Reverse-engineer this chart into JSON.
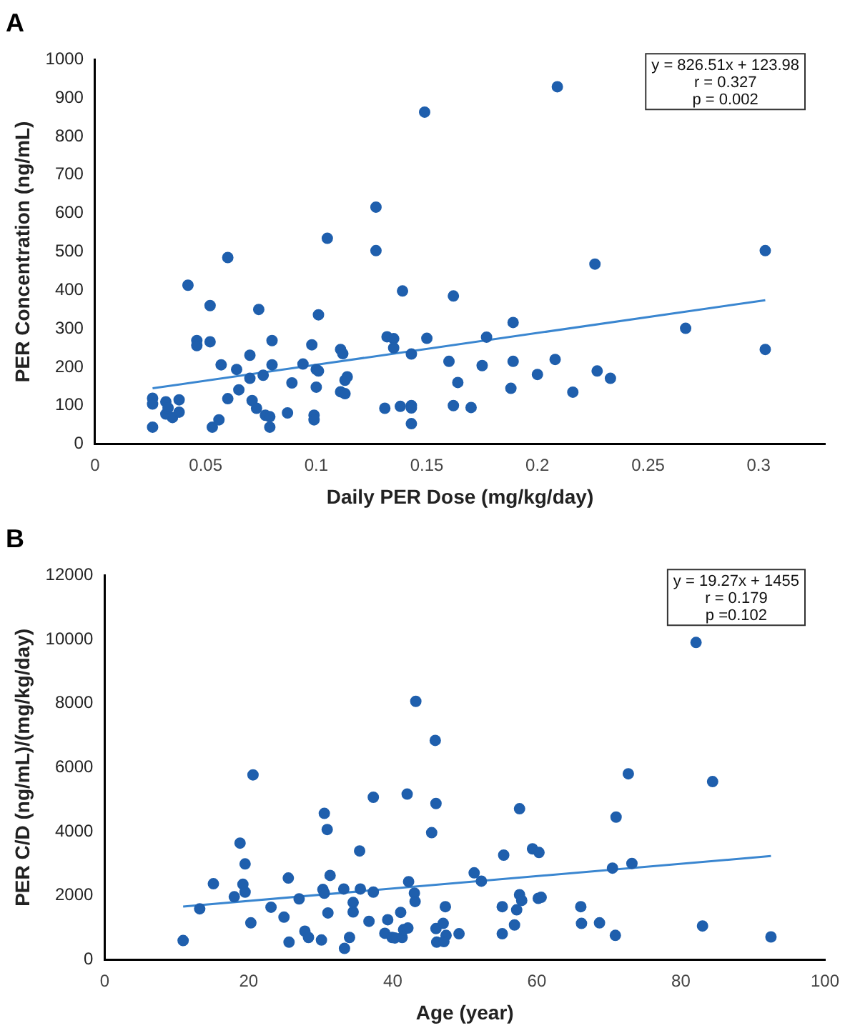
{
  "chart_data": [
    {
      "type": "scatter",
      "title": "A",
      "xlabel": "Daily PER Dose (mg/kg/day)",
      "ylabel": "PER Concentration (ng/mL)",
      "xlim": [
        0,
        0.33
      ],
      "xticks": [
        0,
        0.05,
        0.1,
        0.15,
        0.2,
        0.25,
        0.3
      ],
      "ylim": [
        0,
        1000
      ],
      "yticks": [
        0,
        100,
        200,
        300,
        400,
        500,
        600,
        700,
        800,
        900,
        1000
      ],
      "grid": false,
      "legend": false,
      "annotations": [
        "y = 826.51x + 123.98",
        "r = 0.327",
        "p = 0.002"
      ],
      "series": [
        {
          "type": "scatter",
          "marker": "circle",
          "color": "#1f5fad",
          "x": [
            0.026,
            0.026,
            0.026,
            0.032,
            0.032,
            0.033,
            0.035,
            0.038,
            0.038,
            0.042,
            0.046,
            0.046,
            0.052,
            0.052,
            0.053,
            0.056,
            0.057,
            0.06,
            0.06,
            0.064,
            0.065,
            0.07,
            0.07,
            0.071,
            0.073,
            0.074,
            0.076,
            0.077,
            0.079,
            0.079,
            0.08,
            0.08,
            0.087,
            0.089,
            0.094,
            0.098,
            0.099,
            0.099,
            0.1,
            0.1,
            0.101,
            0.101,
            0.105,
            0.111,
            0.111,
            0.112,
            0.113,
            0.113,
            0.114,
            0.127,
            0.127,
            0.131,
            0.132,
            0.135,
            0.135,
            0.138,
            0.139,
            0.143,
            0.143,
            0.143,
            0.143,
            0.149,
            0.15,
            0.162,
            0.16,
            0.164,
            0.162,
            0.17,
            0.177,
            0.175,
            0.189,
            0.189,
            0.188,
            0.2,
            0.208,
            0.209,
            0.216,
            0.226,
            0.227,
            0.233,
            0.267,
            0.303,
            0.303
          ],
          "values": [
            119,
            104,
            44,
            110,
            78,
            94,
            69,
            115,
            83,
            413,
            269,
            256,
            266,
            360,
            44,
            63,
            206,
            118,
            485,
            194,
            141,
            171,
            231,
            113,
            93,
            350,
            179,
            75,
            71,
            44,
            269,
            206,
            81,
            159,
            208,
            258,
            75,
            63,
            194,
            148,
            336,
            190,
            535,
            246,
            136,
            235,
            131,
            166,
            175,
            616,
            503,
            93,
            279,
            274,
            250,
            98,
            398,
            100,
            234,
            94,
            53,
            863,
            275,
            385,
            215,
            160,
            100,
            95,
            278,
            204,
            316,
            215,
            145,
            181,
            220,
            929,
            135,
            468,
            190,
            171,
            301,
            503,
            246
          ]
        },
        {
          "type": "line",
          "color": "#3a86d0",
          "x": [
            0.026,
            0.303
          ],
          "values": [
            145,
            374
          ]
        }
      ]
    },
    {
      "type": "scatter",
      "title": "B",
      "xlabel": "Age (year)",
      "ylabel": "PER C/D (ng/mL)/(mg/kg/day)",
      "xlim": [
        0,
        100
      ],
      "xticks": [
        0,
        20,
        40,
        60,
        80,
        100
      ],
      "ylim": [
        0,
        12000
      ],
      "yticks": [
        0,
        2000,
        4000,
        6000,
        8000,
        10000,
        12000
      ],
      "grid": false,
      "legend": false,
      "annotations": [
        "y = 19.27x + 1455",
        "r = 0.179",
        "p =0.102"
      ],
      "series": [
        {
          "type": "scatter",
          "marker": "circle",
          "color": "#1f5fad",
          "x": [
            10.9,
            13.2,
            15.1,
            18.0,
            18.8,
            19.2,
            19.5,
            19.5,
            20.3,
            20.6,
            23.1,
            24.9,
            25.5,
            25.6,
            27.0,
            27.8,
            28.3,
            30.1,
            30.3,
            30.5,
            30.5,
            30.9,
            31.0,
            31.3,
            33.2,
            33.3,
            34.0,
            34.5,
            34.5,
            35.4,
            35.5,
            36.7,
            37.3,
            37.3,
            38.9,
            39.3,
            39.9,
            40.3,
            41.1,
            41.3,
            41.5,
            42.0,
            42.1,
            42.2,
            43.0,
            43.1,
            43.2,
            45.4,
            45.9,
            46.0,
            46.0,
            46.1,
            47.0,
            47.3,
            47.4,
            47.1,
            49.2,
            51.3,
            52.3,
            55.2,
            55.2,
            55.4,
            56.9,
            57.2,
            57.6,
            57.6,
            57.9,
            59.4,
            60.2,
            60.3,
            60.6,
            66.1,
            66.2,
            68.7,
            70.5,
            70.9,
            71.0,
            72.7,
            73.2,
            82.1,
            83.0,
            84.4,
            92.5
          ],
          "values": [
            602,
            1593,
            2374,
            1967,
            3642,
            2358,
            2992,
            2114,
            1154,
            5772,
            1642,
            1333,
            2553,
            553,
            1902,
            894,
            699,
            618,
            2195,
            2081,
            4569,
            4065,
            1463,
            2634,
            2211,
            358,
            699,
            1789,
            1496,
            3398,
            2211,
            1203,
            5073,
            2114,
            829,
            1252,
            699,
            683,
            1480,
            699,
            943,
            5171,
            992,
            2439,
            2081,
            1821,
            8065,
            3967,
            6846,
            4878,
            976,
            553,
            1138,
            1659,
            764,
            569,
            813,
            2715,
            2455,
            1659,
            813,
            3268,
            1089,
            1561,
            4715,
            2033,
            1854,
            3463,
            1919,
            3350,
            1951,
            1659,
            1138,
            1154,
            2862,
            764,
            4455,
            5805,
            3008,
            9902,
            1057,
            5561,
            715
          ]
        },
        {
          "type": "line",
          "color": "#3a86d0",
          "x": [
            10.9,
            92.5
          ],
          "values": [
            1665,
            3237
          ]
        }
      ]
    }
  ]
}
